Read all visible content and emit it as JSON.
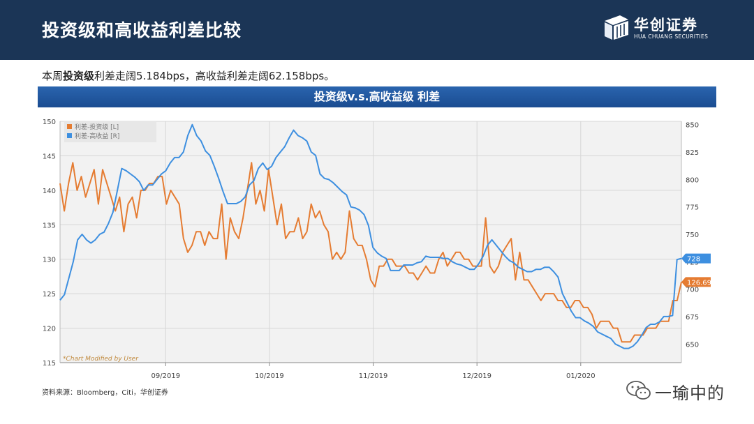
{
  "header": {
    "title": "投资级和高收益利差比较",
    "logo_cn": "华创证券",
    "logo_en": "HUA CHUANG SECURITIES"
  },
  "summary": {
    "prefix": "本周",
    "bold": "投资级",
    "rest": "利差走阔5.184bps，高收益利差走阔62.158bps。"
  },
  "banner": {
    "title": "投资级v.s.高收益级 利差"
  },
  "source": "资料来源：Bloomberg，Citi，华创证券",
  "watermark": {
    "text": "一瑜中的"
  },
  "colors": {
    "ig": "#e57c32",
    "hy": "#3d8fe0",
    "header_bg": "#1b3556",
    "banner_bg": "#1f56a0"
  },
  "chart_data": {
    "type": "line",
    "x_ticks": [
      "09/2019",
      "10/2019",
      "11/2019",
      "12/2019",
      "01/2020"
    ],
    "left_axis": {
      "ylim": [
        115,
        150
      ],
      "ticks": [
        "115",
        "120",
        "125",
        "130",
        "135",
        "140",
        "145",
        "150"
      ]
    },
    "right_axis": {
      "ylim": [
        633,
        853
      ],
      "ticks": [
        "650",
        "675",
        "700",
        "725",
        "750",
        "775",
        "800",
        "825",
        "850"
      ]
    },
    "annotation": "*Chart Modified by User",
    "grid": true,
    "legend_position": "top-left",
    "series": [
      {
        "name": "利差-投资级 [L]",
        "axis": "left",
        "last_label": "126.69",
        "values": [
          141,
          137,
          141,
          144,
          140,
          142,
          139,
          141,
          143,
          138,
          143,
          141,
          139,
          137,
          139,
          134,
          138,
          139,
          136,
          140,
          140,
          141,
          141,
          142,
          142,
          138,
          140,
          139,
          138,
          133,
          131,
          132,
          134,
          134,
          132,
          134,
          133,
          133,
          138,
          130,
          136,
          134,
          133,
          136,
          140,
          144,
          138,
          140,
          137,
          143,
          139,
          135,
          138,
          133,
          134,
          134,
          136,
          133,
          134,
          138,
          136,
          137,
          135,
          134,
          130,
          131,
          130,
          131,
          137,
          133,
          132,
          132,
          130,
          127,
          126,
          129,
          129,
          130,
          130,
          129,
          129,
          129,
          128,
          128,
          127,
          128,
          129,
          128,
          128,
          130,
          131,
          129,
          130,
          131,
          131,
          130,
          130,
          129,
          129,
          129,
          136,
          129,
          128,
          129,
          131,
          132,
          133,
          127,
          131,
          127,
          127,
          126,
          125,
          124,
          125,
          125,
          125,
          124,
          124,
          123,
          123,
          124,
          124,
          123,
          123,
          122,
          120,
          121,
          121,
          121,
          120,
          120,
          118,
          118,
          118,
          119,
          119,
          119,
          120,
          120,
          120,
          121,
          121,
          121,
          124,
          124,
          126.69
        ]
      },
      {
        "name": "利差-高收益 [R]",
        "axis": "right",
        "last_label": "728",
        "values": [
          690,
          695,
          710,
          725,
          745,
          750,
          745,
          742,
          745,
          750,
          752,
          760,
          770,
          790,
          810,
          808,
          805,
          802,
          798,
          790,
          795,
          795,
          800,
          805,
          808,
          815,
          820,
          820,
          825,
          840,
          850,
          840,
          835,
          826,
          822,
          812,
          801,
          789,
          778,
          778,
          778,
          780,
          784,
          795,
          799,
          810,
          815,
          809,
          812,
          820,
          825,
          830,
          838,
          845,
          840,
          838,
          835,
          825,
          822,
          805,
          801,
          800,
          797,
          793,
          789,
          786,
          775,
          774,
          772,
          768,
          758,
          738,
          733,
          730,
          728,
          717,
          717,
          717,
          722,
          722,
          722,
          724,
          725,
          730,
          729,
          729,
          729,
          728,
          728,
          725,
          723,
          722,
          720,
          718,
          718,
          723,
          730,
          740,
          745,
          740,
          735,
          730,
          726,
          724,
          720,
          718,
          716,
          716,
          718,
          718,
          720,
          720,
          716,
          711,
          696,
          688,
          680,
          674,
          674,
          671,
          669,
          666,
          661,
          659,
          657,
          655,
          650,
          648,
          646,
          646,
          648,
          652,
          658,
          665,
          668,
          668,
          670,
          675,
          675,
          676,
          727,
          728
        ]
      }
    ]
  }
}
